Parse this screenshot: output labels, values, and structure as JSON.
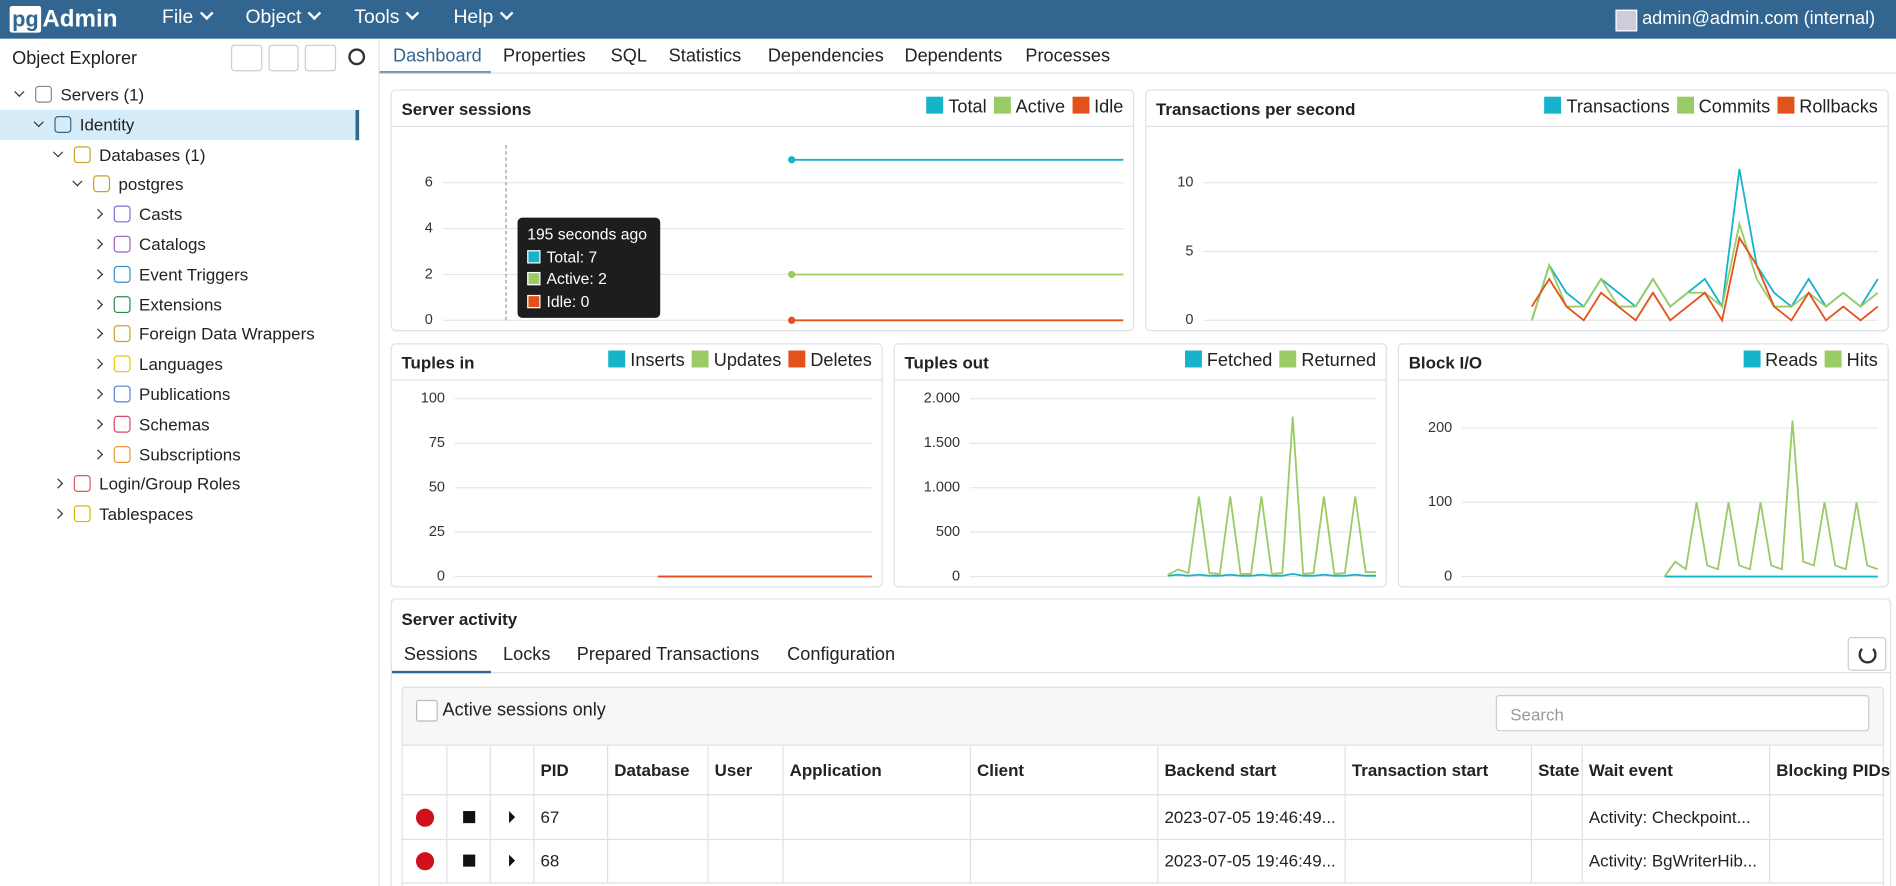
{
  "menu": {
    "brand_pg": "pg",
    "brand_admin": "Admin",
    "items": [
      "File",
      "Object",
      "Tools",
      "Help"
    ],
    "user": "admin@admin.com (internal)"
  },
  "explorer": {
    "title": "Object Explorer",
    "nodes": [
      "Servers (1)",
      "Identity",
      "Databases (1)",
      "postgres",
      "Casts",
      "Catalogs",
      "Event Triggers",
      "Extensions",
      "Foreign Data Wrappers",
      "Languages",
      "Publications",
      "Schemas",
      "Subscriptions",
      "Login/Group Roles",
      "Tablespaces"
    ]
  },
  "tabs": [
    "Dashboard",
    "Properties",
    "SQL",
    "Statistics",
    "Dependencies",
    "Dependents",
    "Processes"
  ],
  "chart_data": [
    {
      "type": "line",
      "title": "Server sessions",
      "ylim": [
        0,
        7.8
      ],
      "yticks": [
        0,
        2,
        4,
        6
      ],
      "series": [
        {
          "name": "Total",
          "color": "#17b3cb",
          "values": [
            null,
            null,
            null,
            null,
            null,
            null,
            null,
            null,
            null,
            null,
            null,
            null,
            null,
            null,
            null,
            null,
            null,
            null,
            null,
            null,
            7,
            7,
            7,
            7,
            7,
            7,
            7,
            7,
            7,
            7,
            7,
            7,
            7,
            7,
            7,
            7,
            7,
            7,
            7,
            7
          ]
        },
        {
          "name": "Active",
          "color": "#9bcb65",
          "values": [
            null,
            null,
            null,
            null,
            null,
            null,
            null,
            null,
            null,
            null,
            null,
            null,
            null,
            null,
            null,
            null,
            null,
            null,
            null,
            null,
            2,
            2,
            2,
            2,
            2,
            2,
            2,
            2,
            2,
            2,
            2,
            2,
            2,
            2,
            2,
            2,
            2,
            2,
            2,
            2
          ]
        },
        {
          "name": "Idle",
          "color": "#e4521b",
          "values": [
            null,
            null,
            null,
            null,
            null,
            null,
            null,
            null,
            null,
            null,
            null,
            null,
            null,
            null,
            null,
            null,
            null,
            null,
            null,
            null,
            0,
            0,
            0,
            0,
            0,
            0,
            0,
            0,
            0,
            0,
            0,
            0,
            0,
            0,
            0,
            0,
            0,
            0,
            0,
            0
          ]
        }
      ]
    },
    {
      "type": "line",
      "title": "Transactions per second",
      "ylim": [
        0,
        13
      ],
      "yticks": [
        0,
        5,
        10
      ],
      "series": [
        {
          "name": "Transactions",
          "color": "#17b3cb",
          "values": [
            null,
            null,
            null,
            null,
            null,
            null,
            null,
            null,
            null,
            null,
            null,
            null,
            null,
            null,
            null,
            null,
            null,
            null,
            null,
            0,
            4,
            2,
            1,
            3,
            2,
            1,
            3,
            1,
            2,
            3,
            1,
            11,
            4,
            2,
            1,
            3,
            1,
            2,
            1,
            3
          ]
        },
        {
          "name": "Commits",
          "color": "#9bcb65",
          "values": [
            null,
            null,
            null,
            null,
            null,
            null,
            null,
            null,
            null,
            null,
            null,
            null,
            null,
            null,
            null,
            null,
            null,
            null,
            null,
            0,
            4,
            1,
            1,
            3,
            1,
            1,
            3,
            1,
            2,
            2,
            1,
            7,
            3,
            1,
            1,
            2,
            1,
            2,
            1,
            2
          ]
        },
        {
          "name": "Rollbacks",
          "color": "#e4521b",
          "values": [
            null,
            null,
            null,
            null,
            null,
            null,
            null,
            null,
            null,
            null,
            null,
            null,
            null,
            null,
            null,
            null,
            null,
            null,
            null,
            1,
            3,
            1,
            0,
            2,
            1,
            0,
            2,
            0,
            1,
            2,
            0,
            6,
            4,
            1,
            0,
            2,
            0,
            1,
            0,
            1
          ]
        }
      ]
    },
    {
      "type": "line",
      "title": "Tuples in",
      "ylim": [
        0,
        102
      ],
      "yticks": [
        0,
        25,
        50,
        75,
        100
      ],
      "series": [
        {
          "name": "Inserts",
          "color": "#17b3cb",
          "values": [
            null,
            null,
            null,
            null,
            null,
            null,
            null,
            null,
            null,
            null,
            null,
            null,
            null,
            null,
            null,
            null,
            null,
            null,
            null,
            0,
            0,
            0,
            0,
            0,
            0,
            0,
            0,
            0,
            0,
            0,
            0,
            0,
            0,
            0,
            0,
            0,
            0,
            0,
            0,
            0
          ]
        },
        {
          "name": "Updates",
          "color": "#9bcb65",
          "values": [
            null,
            null,
            null,
            null,
            null,
            null,
            null,
            null,
            null,
            null,
            null,
            null,
            null,
            null,
            null,
            null,
            null,
            null,
            null,
            0,
            0,
            0,
            0,
            0,
            0,
            0,
            0,
            0,
            0,
            0,
            0,
            0,
            0,
            0,
            0,
            0,
            0,
            0,
            0,
            0
          ]
        },
        {
          "name": "Deletes",
          "color": "#e4521b",
          "values": [
            null,
            null,
            null,
            null,
            null,
            null,
            null,
            null,
            null,
            null,
            null,
            null,
            null,
            null,
            null,
            null,
            null,
            null,
            null,
            0,
            0,
            0,
            0,
            0,
            0,
            0,
            0,
            0,
            0,
            0,
            0,
            0,
            0,
            0,
            0,
            0,
            0,
            0,
            0,
            0
          ]
        }
      ]
    },
    {
      "type": "line",
      "title": "Tuples out",
      "ylim": [
        0,
        2040
      ],
      "yticks": [
        0,
        500,
        {
          "value": 1000,
          "label": "1.000"
        },
        {
          "value": 1500,
          "label": "1.500"
        },
        {
          "value": 2000,
          "label": "2.000"
        }
      ],
      "series": [
        {
          "name": "Fetched",
          "color": "#17b3cb",
          "values": [
            null,
            null,
            null,
            null,
            null,
            null,
            null,
            null,
            null,
            null,
            null,
            null,
            null,
            null,
            null,
            null,
            null,
            null,
            null,
            10,
            20,
            10,
            20,
            10,
            10,
            20,
            10,
            10,
            20,
            10,
            10,
            30,
            10,
            10,
            20,
            10,
            10,
            20,
            10,
            10
          ]
        },
        {
          "name": "Returned",
          "color": "#9bcb65",
          "values": [
            null,
            null,
            null,
            null,
            null,
            null,
            null,
            null,
            null,
            null,
            null,
            null,
            null,
            null,
            null,
            null,
            null,
            null,
            null,
            20,
            80,
            40,
            900,
            40,
            30,
            900,
            30,
            30,
            900,
            30,
            40,
            1800,
            30,
            40,
            900,
            30,
            40,
            900,
            50,
            50
          ]
        }
      ]
    },
    {
      "type": "line",
      "title": "Block I/O",
      "ylim": [
        0,
        244
      ],
      "yticks": [
        0,
        100,
        200
      ],
      "series": [
        {
          "name": "Reads",
          "color": "#17b3cb",
          "values": [
            null,
            null,
            null,
            null,
            null,
            null,
            null,
            null,
            null,
            null,
            null,
            null,
            null,
            null,
            null,
            null,
            null,
            null,
            null,
            0,
            0,
            0,
            0,
            0,
            0,
            0,
            0,
            0,
            0,
            0,
            0,
            0,
            0,
            0,
            0,
            0,
            0,
            0,
            0,
            0
          ]
        },
        {
          "name": "Hits",
          "color": "#9bcb65",
          "values": [
            null,
            null,
            null,
            null,
            null,
            null,
            null,
            null,
            null,
            null,
            null,
            null,
            null,
            null,
            null,
            null,
            null,
            null,
            null,
            0,
            20,
            10,
            100,
            15,
            10,
            100,
            15,
            10,
            100,
            15,
            10,
            210,
            20,
            15,
            100,
            15,
            10,
            100,
            15,
            10
          ]
        }
      ]
    }
  ],
  "tooltip": {
    "title": "195 seconds ago",
    "lines": [
      "Total: 7",
      "Active: 2",
      "Idle: 0"
    ]
  },
  "activity": {
    "title": "Server activity",
    "tabs": [
      "Sessions",
      "Locks",
      "Prepared Transactions",
      "Configuration"
    ],
    "checkbox": "Active sessions only",
    "search": "Search",
    "columns": [
      "PID",
      "Database",
      "User",
      "Application",
      "Client",
      "Backend start",
      "Transaction start",
      "State",
      "Wait event",
      "Blocking PIDs"
    ],
    "rows": [
      {
        "pid": 67,
        "backend_start": "2023-07-05 19:46:49...",
        "wait_event": "Activity: Checkpoint..."
      },
      {
        "pid": 68,
        "backend_start": "2023-07-05 19:46:49...",
        "wait_event": "Activity: BgWriterHib..."
      }
    ]
  }
}
